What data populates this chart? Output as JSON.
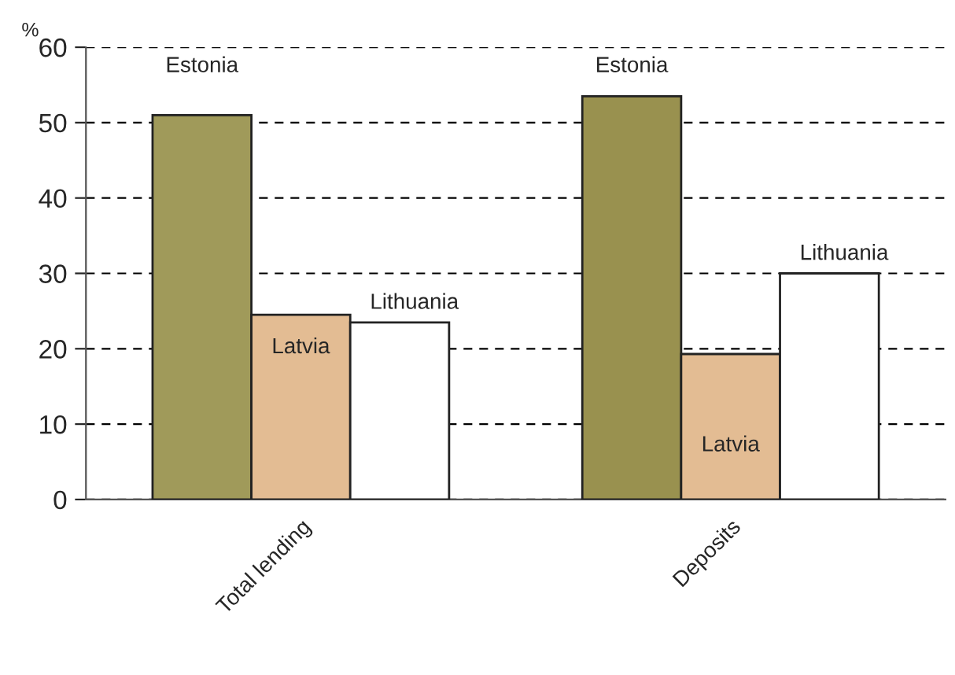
{
  "chart_data": {
    "type": "bar",
    "ylabel": "%",
    "categories": [
      "Total lending",
      "Deposits"
    ],
    "series": [
      {
        "name": "Estonia",
        "colors": [
          "#a09a5a",
          "#99914f"
        ],
        "values": [
          51,
          53.5
        ]
      },
      {
        "name": "Latvia",
        "color": "#e3bc93",
        "values": [
          24.5,
          19.3
        ]
      },
      {
        "name": "Lithuania",
        "color": "#ffffff",
        "values": [
          23.5,
          30
        ]
      }
    ],
    "ylim": [
      0,
      60
    ],
    "yticks": [
      0,
      10,
      20,
      30,
      40,
      50,
      60
    ],
    "grid": "y",
    "legend": false
  }
}
